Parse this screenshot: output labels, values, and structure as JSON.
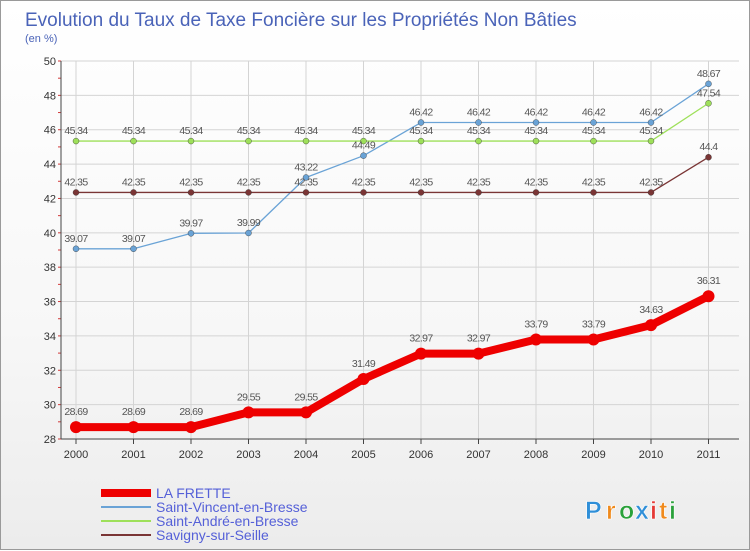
{
  "chart_data": {
    "type": "line",
    "title": "Evolution du Taux de Taxe Foncière sur les Propriétés Non Bâties",
    "unit_label": "(en %)",
    "xlabel": "",
    "ylabel": "",
    "x": [
      "2000",
      "2001",
      "2002",
      "2003",
      "2004",
      "2005",
      "2006",
      "2007",
      "2008",
      "2009",
      "2010",
      "2011"
    ],
    "ylim": [
      28,
      50
    ],
    "yticks": [
      28,
      30,
      32,
      34,
      36,
      38,
      40,
      42,
      44,
      46,
      48,
      50
    ],
    "grid": true,
    "legend_position": "bottom-left",
    "series": [
      {
        "name": "LA FRETTE",
        "color": "#ee0000",
        "emphasis": true,
        "values": [
          28.69,
          28.69,
          28.69,
          29.55,
          29.55,
          31.49,
          32.97,
          32.97,
          33.79,
          33.79,
          34.63,
          36.31
        ],
        "labels": [
          "28.69",
          "28.69",
          "28.69",
          "29.55",
          "29.55",
          "31.49",
          "32.97",
          "32.97",
          "33.79",
          "33.79",
          "34.63",
          "36.31"
        ]
      },
      {
        "name": "Saint-Vincent-en-Bresse",
        "color": "#6aa3d6",
        "values": [
          39.07,
          39.07,
          39.97,
          39.99,
          43.22,
          44.49,
          46.42,
          46.42,
          46.42,
          46.42,
          46.42,
          48.67
        ],
        "labels": [
          "39.07",
          "39.07",
          "39.97",
          "39.99",
          "43.22",
          "44.49",
          "46.42",
          "46.42",
          "46.42",
          "46.42",
          "46.42",
          "48.67"
        ]
      },
      {
        "name": "Saint-André-en-Bresse",
        "color": "#9ee05a",
        "values": [
          45.34,
          45.34,
          45.34,
          45.34,
          45.34,
          45.34,
          45.34,
          45.34,
          45.34,
          45.34,
          45.34,
          47.54
        ],
        "labels": [
          "45.34",
          "45.34",
          "45.34",
          "45.34",
          "45.34",
          "45.34",
          "45.34",
          "45.34",
          "45.34",
          "45.34",
          "45.34",
          "47.54"
        ]
      },
      {
        "name": "Savigny-sur-Seille",
        "color": "#7a3535",
        "values": [
          42.35,
          42.35,
          42.35,
          42.35,
          42.35,
          42.35,
          42.35,
          42.35,
          42.35,
          42.35,
          42.35,
          44.4
        ],
        "labels": [
          "42.35",
          "42.35",
          "42.35",
          "42.35",
          "42.35",
          "42.35",
          "42.35",
          "42.35",
          "42.35",
          "42.35",
          "42.35",
          "44.4"
        ]
      }
    ]
  },
  "brand": {
    "letters": [
      "P",
      "r",
      "o",
      "x",
      "i",
      "t",
      "i"
    ],
    "colors": [
      "#2f8fd8",
      "#f08a1c",
      "#2aa13a",
      "#2f8fd8",
      "#e53935",
      "#f08a1c",
      "#2aa13a"
    ]
  }
}
